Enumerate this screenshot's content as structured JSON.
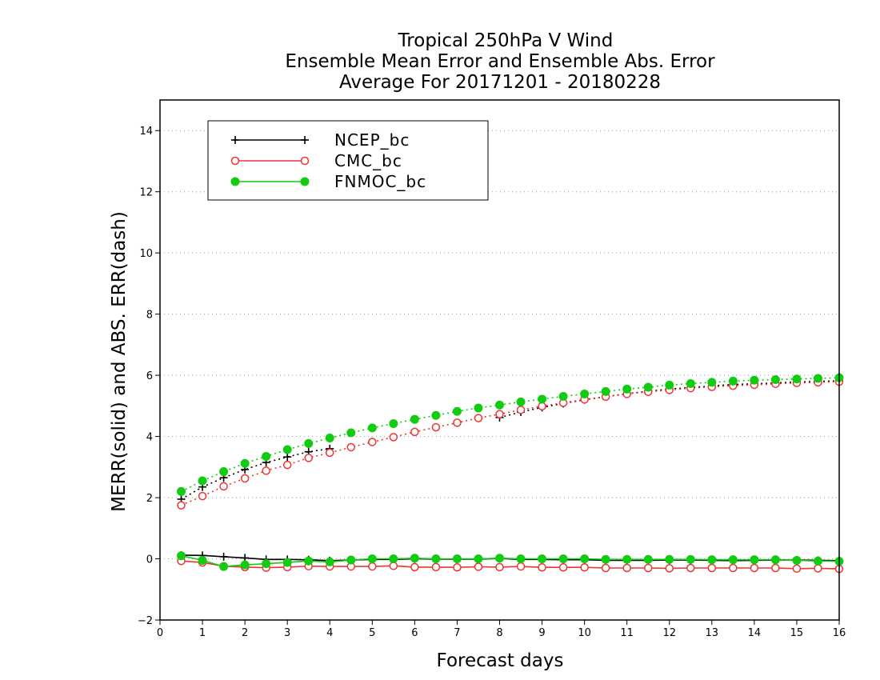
{
  "chart_data": {
    "type": "line",
    "title_lines": [
      "Tropical 250hPa V Wind",
      "Ensemble Mean Error and Ensemble Abs. Error",
      "Average For 20171201 - 20180228"
    ],
    "xlabel": "Forecast days",
    "ylabel": "MERR(solid) and ABS. ERR(dash)",
    "xlim": [
      0,
      16
    ],
    "ylim": [
      -2,
      15
    ],
    "x_ticks": [
      0,
      1,
      2,
      3,
      4,
      5,
      6,
      7,
      8,
      9,
      10,
      11,
      12,
      13,
      14,
      15,
      16
    ],
    "y_ticks": [
      -2,
      0,
      2,
      4,
      6,
      8,
      10,
      12,
      14
    ],
    "grid": "horizontal dotted",
    "legend_position": "top-left",
    "x": [
      0.5,
      1.0,
      1.5,
      2.0,
      2.5,
      3.0,
      3.5,
      4.0,
      4.5,
      5.0,
      5.5,
      6.0,
      6.5,
      7.0,
      7.5,
      8.0,
      8.5,
      9.0,
      9.5,
      10.0,
      10.5,
      11.0,
      11.5,
      12.0,
      12.5,
      13.0,
      13.5,
      14.0,
      14.5,
      15.0,
      15.5,
      16.0
    ],
    "series": [
      {
        "name": "NCEP_bc",
        "color": "#000000",
        "marker": "plus",
        "merr": [
          0.12,
          0.11,
          0.07,
          0.03,
          -0.02,
          -0.02,
          -0.03,
          -0.06,
          -0.04,
          -0.02,
          -0.02,
          0.0,
          -0.01,
          -0.01,
          -0.01,
          0.01,
          -0.02,
          -0.02,
          -0.03,
          -0.03,
          -0.05,
          -0.05,
          -0.05,
          -0.04,
          -0.04,
          -0.05,
          -0.06,
          -0.05,
          -0.04,
          -0.04,
          -0.05,
          -0.06
        ],
        "abs_err": [
          1.95,
          2.35,
          2.65,
          2.92,
          3.15,
          3.33,
          3.5,
          3.6,
          null,
          null,
          null,
          null,
          null,
          null,
          null,
          4.62,
          4.8,
          4.95,
          5.08,
          5.2,
          5.3,
          5.4,
          5.48,
          5.55,
          5.6,
          5.65,
          5.7,
          5.72,
          5.75,
          5.78,
          5.8,
          5.82
        ]
      },
      {
        "name": "CMC_bc",
        "color": "#ee3333",
        "marker": "open-circle",
        "merr": [
          -0.07,
          -0.12,
          -0.24,
          -0.27,
          -0.29,
          -0.27,
          -0.24,
          -0.25,
          -0.25,
          -0.25,
          -0.23,
          -0.27,
          -0.27,
          -0.28,
          -0.26,
          -0.27,
          -0.25,
          -0.28,
          -0.28,
          -0.28,
          -0.3,
          -0.3,
          -0.3,
          -0.31,
          -0.3,
          -0.3,
          -0.3,
          -0.3,
          -0.3,
          -0.32,
          -0.31,
          -0.33
        ],
        "abs_err": [
          1.75,
          2.05,
          2.37,
          2.63,
          2.88,
          3.07,
          3.3,
          3.47,
          3.65,
          3.82,
          3.98,
          4.15,
          4.3,
          4.45,
          4.6,
          4.73,
          4.87,
          4.99,
          5.1,
          5.21,
          5.3,
          5.39,
          5.46,
          5.52,
          5.58,
          5.62,
          5.66,
          5.69,
          5.72,
          5.75,
          5.77,
          5.79
        ]
      },
      {
        "name": "FNMOC_bc",
        "color": "#11cc11",
        "marker": "filled-circle",
        "merr": [
          0.1,
          -0.05,
          -0.25,
          -0.2,
          -0.16,
          -0.12,
          -0.07,
          -0.1,
          -0.04,
          0.0,
          0.0,
          0.02,
          0.0,
          0.0,
          0.0,
          0.02,
          0.0,
          0.0,
          0.0,
          0.0,
          -0.02,
          -0.02,
          -0.02,
          -0.02,
          -0.02,
          -0.03,
          -0.03,
          -0.03,
          -0.03,
          -0.05,
          -0.07,
          -0.08
        ],
        "abs_err": [
          2.2,
          2.55,
          2.85,
          3.12,
          3.35,
          3.57,
          3.77,
          3.95,
          4.12,
          4.28,
          4.42,
          4.56,
          4.69,
          4.82,
          4.93,
          5.03,
          5.13,
          5.22,
          5.31,
          5.39,
          5.47,
          5.55,
          5.61,
          5.68,
          5.73,
          5.77,
          5.81,
          5.84,
          5.86,
          5.88,
          5.9,
          5.92
        ]
      }
    ]
  }
}
